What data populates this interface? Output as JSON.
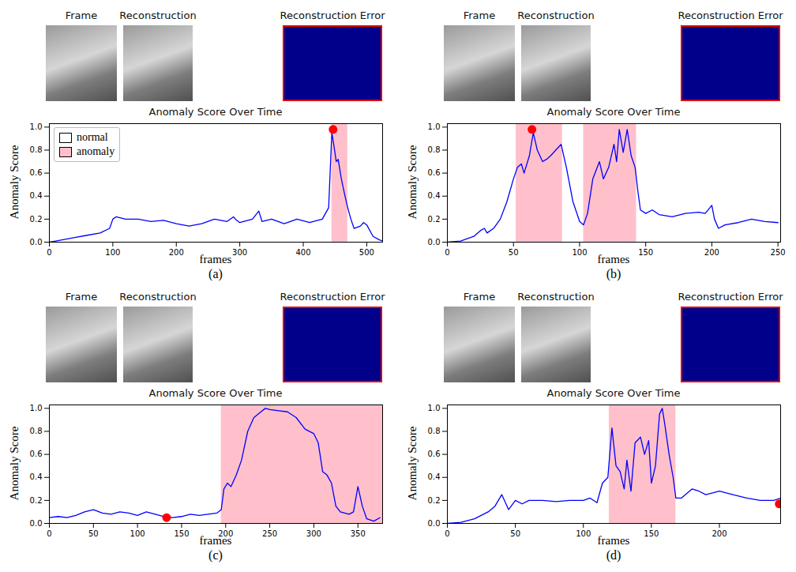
{
  "chart_data": [
    {
      "type": "line",
      "panel_label": "(a)",
      "image_titles": [
        "Frame",
        "Reconstruction",
        "Reconstruction Error"
      ],
      "title": "Anomaly Score Over Time",
      "x_label": "frames",
      "y_label": "Anomaly Score",
      "xlim": [
        0,
        525
      ],
      "xticks": [
        0,
        100,
        200,
        300,
        400,
        500
      ],
      "ylim": [
        0,
        1.03
      ],
      "yticks": [
        {
          "value": 0,
          "label": "0.0"
        },
        {
          "value": 0.2,
          "label": "0.2"
        },
        {
          "value": 0.4,
          "label": "0.4"
        },
        {
          "value": 0.6,
          "label": "0.6"
        },
        {
          "value": 0.8,
          "label": "0.8"
        },
        {
          "value": 1,
          "label": "1.0"
        }
      ],
      "x": [
        0,
        10,
        20,
        40,
        60,
        80,
        95,
        100,
        105,
        120,
        140,
        160,
        180,
        200,
        220,
        240,
        260,
        280,
        290,
        295,
        300,
        320,
        330,
        335,
        350,
        370,
        390,
        410,
        430,
        440,
        445,
        448,
        452,
        455,
        460,
        465,
        470,
        475,
        480,
        490,
        495,
        500,
        510,
        520,
        525
      ],
      "values": [
        0.0,
        0.01,
        0.02,
        0.04,
        0.06,
        0.08,
        0.12,
        0.2,
        0.22,
        0.2,
        0.2,
        0.18,
        0.19,
        0.16,
        0.14,
        0.16,
        0.2,
        0.18,
        0.22,
        0.19,
        0.17,
        0.2,
        0.27,
        0.18,
        0.2,
        0.16,
        0.2,
        0.17,
        0.2,
        0.3,
        0.95,
        0.85,
        0.7,
        0.72,
        0.55,
        0.42,
        0.3,
        0.2,
        0.12,
        0.14,
        0.17,
        0.15,
        0.05,
        0.02,
        0.01
      ],
      "color": "#0000ff",
      "regions": [
        {
          "name": "normal",
          "color": "#ffffff"
        },
        {
          "name": "anomaly",
          "color": "#ffc0cb",
          "ranges": [
            [
              445,
              470
            ]
          ]
        }
      ],
      "highlight": {
        "x": 447,
        "y": 0.98,
        "color": "#ff0000"
      },
      "legend": "upper left"
    },
    {
      "type": "line",
      "panel_label": "(b)",
      "image_titles": [
        "Frame",
        "Reconstruction",
        "Reconstruction Error"
      ],
      "title": "Anomaly Score Over Time",
      "x_label": "frames",
      "y_label": "Anomaly Score",
      "xlim": [
        0,
        252
      ],
      "xticks": [
        0,
        50,
        100,
        150,
        200,
        250
      ],
      "ylim": [
        0,
        1.03
      ],
      "yticks": [
        {
          "value": 0,
          "label": "0.0"
        },
        {
          "value": 0.2,
          "label": "0.2"
        },
        {
          "value": 0.4,
          "label": "0.4"
        },
        {
          "value": 0.6,
          "label": "0.6"
        },
        {
          "value": 0.8,
          "label": "0.8"
        },
        {
          "value": 1,
          "label": "1.0"
        }
      ],
      "x": [
        0,
        10,
        20,
        25,
        28,
        30,
        35,
        40,
        45,
        50,
        53,
        56,
        58,
        62,
        65,
        68,
        72,
        75,
        78,
        82,
        86,
        90,
        95,
        100,
        103,
        106,
        110,
        115,
        118,
        122,
        126,
        128,
        130,
        133,
        136,
        139,
        142,
        144,
        146,
        150,
        155,
        160,
        170,
        180,
        190,
        195,
        200,
        202,
        205,
        210,
        220,
        230,
        240,
        250
      ],
      "values": [
        0.0,
        0.01,
        0.05,
        0.1,
        0.12,
        0.08,
        0.12,
        0.2,
        0.35,
        0.55,
        0.65,
        0.68,
        0.6,
        0.75,
        0.95,
        0.8,
        0.7,
        0.72,
        0.75,
        0.8,
        0.85,
        0.65,
        0.35,
        0.18,
        0.15,
        0.25,
        0.55,
        0.7,
        0.55,
        0.65,
        0.85,
        0.7,
        0.98,
        0.78,
        0.98,
        0.75,
        0.65,
        0.45,
        0.28,
        0.25,
        0.28,
        0.24,
        0.22,
        0.25,
        0.26,
        0.25,
        0.32,
        0.2,
        0.12,
        0.15,
        0.17,
        0.2,
        0.18,
        0.17
      ],
      "color": "#0000ff",
      "regions": [
        {
          "name": "normal",
          "color": "#ffffff"
        },
        {
          "name": "anomaly",
          "color": "#ffc0cb",
          "ranges": [
            [
              52,
              87
            ],
            [
              103,
              143
            ]
          ]
        }
      ],
      "highlight": {
        "x": 64,
        "y": 0.98,
        "color": "#ff0000"
      }
    },
    {
      "type": "line",
      "panel_label": "(c)",
      "image_titles": [
        "Frame",
        "Reconstruction",
        "Reconstruction Error"
      ],
      "title": "Anomaly Score Over Time",
      "x_label": "frames",
      "y_label": "Anomaly Score",
      "xlim": [
        0,
        378
      ],
      "xticks": [
        0,
        50,
        100,
        150,
        200,
        250,
        300,
        350
      ],
      "ylim": [
        0,
        1.03
      ],
      "yticks": [
        {
          "value": 0,
          "label": "0.0"
        },
        {
          "value": 0.2,
          "label": "0.2"
        },
        {
          "value": 0.4,
          "label": "0.4"
        },
        {
          "value": 0.6,
          "label": "0.6"
        },
        {
          "value": 0.8,
          "label": "0.8"
        },
        {
          "value": 1,
          "label": "1.0"
        }
      ],
      "x": [
        0,
        10,
        20,
        30,
        40,
        50,
        60,
        70,
        80,
        90,
        100,
        110,
        120,
        130,
        140,
        150,
        160,
        170,
        180,
        190,
        195,
        198,
        202,
        206,
        212,
        218,
        225,
        232,
        240,
        245,
        250,
        260,
        270,
        280,
        290,
        300,
        305,
        310,
        315,
        320,
        325,
        330,
        340,
        345,
        350,
        355,
        360,
        368,
        375
      ],
      "values": [
        0.05,
        0.06,
        0.05,
        0.07,
        0.1,
        0.12,
        0.09,
        0.08,
        0.1,
        0.09,
        0.07,
        0.1,
        0.08,
        0.06,
        0.05,
        0.06,
        0.08,
        0.07,
        0.08,
        0.09,
        0.12,
        0.3,
        0.35,
        0.32,
        0.42,
        0.55,
        0.8,
        0.92,
        0.97,
        1.0,
        0.99,
        0.98,
        0.97,
        0.92,
        0.82,
        0.78,
        0.7,
        0.45,
        0.42,
        0.35,
        0.15,
        0.1,
        0.08,
        0.1,
        0.32,
        0.15,
        0.04,
        0.02,
        0.05
      ],
      "color": "#0000ff",
      "regions": [
        {
          "name": "normal",
          "color": "#ffffff"
        },
        {
          "name": "anomaly",
          "color": "#ffc0cb",
          "ranges": [
            [
              195,
              378
            ]
          ]
        }
      ],
      "highlight": {
        "x": 133,
        "y": 0.05,
        "color": "#ff0000"
      }
    },
    {
      "type": "line",
      "panel_label": "(d)",
      "image_titles": [
        "Frame",
        "Reconstruction",
        "Reconstruction Error"
      ],
      "title": "Anomaly Score Over Time",
      "x_label": "frames",
      "y_label": "Anomaly Score",
      "xlim": [
        0,
        245
      ],
      "xticks": [
        0,
        50,
        100,
        150,
        200
      ],
      "ylim": [
        0,
        1.03
      ],
      "yticks": [
        {
          "value": 0,
          "label": "0.0"
        },
        {
          "value": 0.2,
          "label": "0.2"
        },
        {
          "value": 0.4,
          "label": "0.4"
        },
        {
          "value": 0.6,
          "label": "0.6"
        },
        {
          "value": 0.8,
          "label": "0.8"
        },
        {
          "value": 1,
          "label": "1.0"
        }
      ],
      "x": [
        0,
        10,
        20,
        30,
        35,
        40,
        45,
        50,
        55,
        60,
        70,
        80,
        90,
        100,
        105,
        110,
        114,
        118,
        121,
        124,
        127,
        130,
        132,
        135,
        138,
        142,
        145,
        148,
        150,
        153,
        156,
        158,
        160,
        163,
        166,
        168,
        172,
        180,
        185,
        190,
        200,
        210,
        220,
        230,
        240,
        245
      ],
      "values": [
        0.0,
        0.01,
        0.04,
        0.1,
        0.15,
        0.25,
        0.12,
        0.2,
        0.17,
        0.2,
        0.2,
        0.19,
        0.2,
        0.2,
        0.22,
        0.18,
        0.35,
        0.4,
        0.83,
        0.5,
        0.45,
        0.3,
        0.55,
        0.28,
        0.7,
        0.75,
        0.6,
        0.72,
        0.35,
        0.5,
        0.95,
        1.0,
        0.85,
        0.6,
        0.4,
        0.22,
        0.22,
        0.3,
        0.28,
        0.25,
        0.28,
        0.25,
        0.22,
        0.2,
        0.2,
        0.22
      ],
      "color": "#0000ff",
      "regions": [
        {
          "name": "normal",
          "color": "#ffffff"
        },
        {
          "name": "anomaly",
          "color": "#ffc0cb",
          "ranges": [
            [
              119,
              168
            ]
          ]
        }
      ],
      "highlight": {
        "x": 244,
        "y": 0.17,
        "color": "#ff0000"
      }
    }
  ]
}
